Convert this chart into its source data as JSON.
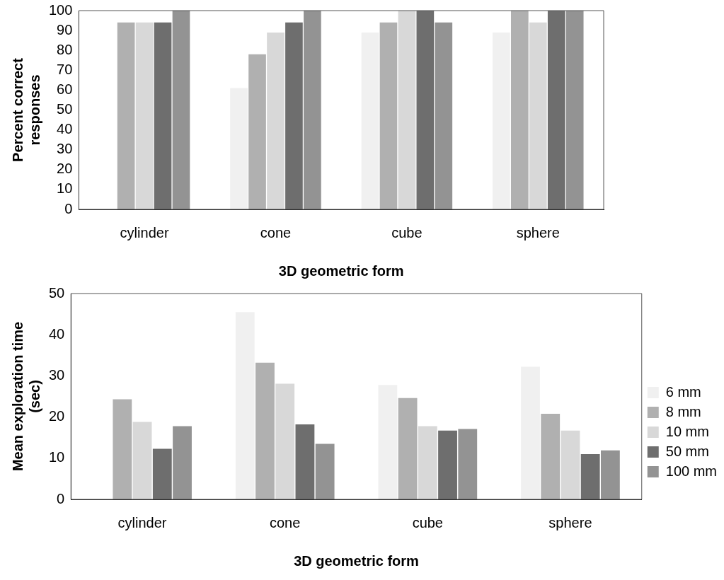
{
  "chart_data": [
    {
      "type": "bar",
      "xlabel": "3D geometric form",
      "ylabel": "Percent correct\nresponses",
      "categories": [
        "cylinder",
        "cone",
        "cube",
        "sphere"
      ],
      "series": [
        {
          "color": "#f0f0f0",
          "values": [
            null,
            61,
            89,
            89
          ]
        },
        {
          "color": "#b0b0b0",
          "values": [
            94,
            78,
            94,
            100
          ]
        },
        {
          "color": "#d8d8d8",
          "values": [
            94,
            89,
            100,
            94
          ]
        },
        {
          "color": "#6e6e6e",
          "values": [
            94,
            94,
            100,
            100
          ]
        },
        {
          "color": "#939393",
          "values": [
            100,
            100,
            94,
            100
          ]
        }
      ],
      "ylim": [
        0,
        100
      ],
      "yticks": [
        0,
        10,
        20,
        30,
        40,
        50,
        60,
        70,
        80,
        90,
        100
      ],
      "grid": false,
      "legend": false
    },
    {
      "type": "bar",
      "xlabel": "3D geometric form",
      "ylabel": "Mean exploration time\n(sec)",
      "categories": [
        "cylinder",
        "cone",
        "cube",
        "sphere"
      ],
      "series": [
        {
          "name": "6 mm",
          "color": "#f0f0f0",
          "values": [
            null,
            45.5,
            27.8,
            32.2
          ]
        },
        {
          "name": "8 mm",
          "color": "#b0b0b0",
          "values": [
            24.3,
            33.2,
            24.6,
            20.8
          ]
        },
        {
          "name": "10 mm",
          "color": "#d8d8d8",
          "values": [
            18.8,
            28.1,
            17.8,
            16.7
          ]
        },
        {
          "name": "50 mm",
          "color": "#6e6e6e",
          "values": [
            12.3,
            18.2,
            16.7,
            11
          ]
        },
        {
          "name": "100 mm",
          "color": "#939393",
          "values": [
            17.8,
            13.5,
            17.1,
            11.9
          ]
        }
      ],
      "ylim": [
        0,
        50
      ],
      "yticks": [
        0,
        10,
        20,
        30,
        40,
        50
      ],
      "grid": false,
      "legend": "right"
    }
  ]
}
